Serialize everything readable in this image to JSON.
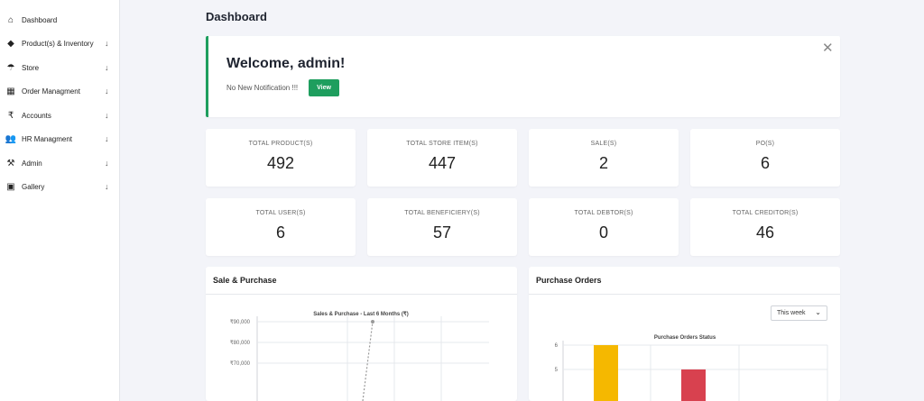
{
  "sidebar": {
    "items": [
      {
        "label": "Dashboard",
        "icon": "home-icon",
        "glyph": "⌂",
        "arrow": ""
      },
      {
        "label": "Product(s) & Inventory",
        "icon": "tag-icon",
        "glyph": "◆",
        "arrow": "↓"
      },
      {
        "label": "Store",
        "icon": "store-icon",
        "glyph": "☂",
        "arrow": "↓"
      },
      {
        "label": "Order Managment",
        "icon": "boxes-icon",
        "glyph": "▦",
        "arrow": "↓"
      },
      {
        "label": "Accounts",
        "icon": "rupee-icon",
        "glyph": "₹",
        "arrow": "↓"
      },
      {
        "label": "HR Managment",
        "icon": "users-icon",
        "glyph": "👥",
        "arrow": "↓"
      },
      {
        "label": "Admin",
        "icon": "hammer-icon",
        "glyph": "⚒",
        "arrow": "↓"
      },
      {
        "label": "Gallery",
        "icon": "image-icon",
        "glyph": "▣",
        "arrow": "↓"
      }
    ]
  },
  "header": {
    "title": "Dashboard"
  },
  "welcome": {
    "title": "Welcome, admin!",
    "note": "No New Notification !!!",
    "view_label": "View",
    "close_glyph": "✕"
  },
  "stats": [
    {
      "label": "TOTAL PRODUCT(S)",
      "value": "492"
    },
    {
      "label": "TOTAL STORE ITEM(S)",
      "value": "447"
    },
    {
      "label": "SALE(S)",
      "value": "2"
    },
    {
      "label": "PO(S)",
      "value": "6"
    },
    {
      "label": "TOTAL USER(S)",
      "value": "6"
    },
    {
      "label": "TOTAL BENEFICIERY(S)",
      "value": "57"
    },
    {
      "label": "TOTAL DEBTOR(S)",
      "value": "0"
    },
    {
      "label": "TOTAL CREDITOR(S)",
      "value": "46"
    }
  ],
  "panels": {
    "sale_purchase": {
      "title": "Sale & Purchase"
    },
    "purchase_orders": {
      "title": "Purchase Orders",
      "range_selected": "This week",
      "caret": "⌄"
    }
  },
  "colors": {
    "accent": "#1e9e5e",
    "bar_yellow": "#f5b800",
    "bar_red": "#d8414f"
  },
  "chart_data": [
    {
      "type": "line",
      "title": "Sales & Purchase - Last 6 Months (₹)",
      "yticks": [
        "₹90,000",
        "₹80,000",
        "₹70,000"
      ],
      "visible_ylim": [
        65000,
        90000
      ],
      "series": [
        {
          "values": [
            90000
          ]
        }
      ],
      "grid": true,
      "legend": "none"
    },
    {
      "type": "bar",
      "title": "Purchase Orders Status",
      "yticks": [
        "6",
        "5"
      ],
      "ylim": [
        4.8,
        6
      ],
      "series": [
        {
          "values": [
            6
          ],
          "color": "#f5b800"
        },
        {
          "values": [
            5
          ],
          "color": "#d8414f"
        }
      ],
      "grid": true,
      "legend": "none"
    }
  ]
}
